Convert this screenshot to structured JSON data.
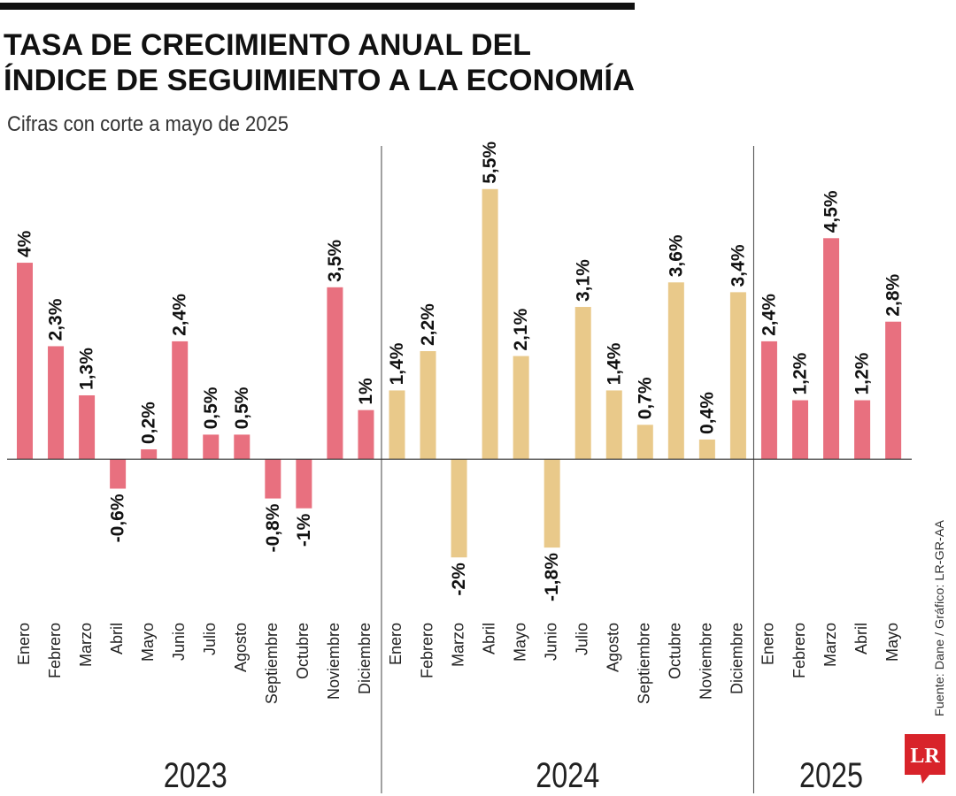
{
  "chart_data": {
    "type": "bar",
    "title": [
      "TASA DE CRECIMIENTO ANUAL DEL",
      "ÍNDICE DE SEGUIMIENTO A LA ECONOMÍA"
    ],
    "subtitle": "Cifras con corte a mayo de 2025",
    "source": "Fuente: Dane / Gráfico: LR-GR-AA",
    "logo": "LR",
    "ylim": [
      -2.5,
      6
    ],
    "groups": [
      {
        "name": "2023",
        "color": "#e8707f",
        "categories": [
          "Enero",
          "Febrero",
          "Marzo",
          "Abril",
          "Mayo",
          "Junio",
          "Julio",
          "Agosto",
          "Septiembre",
          "Octubre",
          "Noviembre",
          "Diciembre"
        ],
        "values": [
          4,
          2.3,
          1.3,
          -0.6,
          0.2,
          2.4,
          0.5,
          0.5,
          -0.8,
          -1,
          3.5,
          1
        ],
        "value_labels": [
          "4%",
          "2,3%",
          "1,3%",
          "-0,6%",
          "0,2%",
          "2,4%",
          "0,5%",
          "0,5%",
          "-0,8%",
          "-1%",
          "3,5%",
          "1%"
        ]
      },
      {
        "name": "2024",
        "color": "#e9c98a",
        "categories": [
          "Enero",
          "Febrero",
          "Marzo",
          "Abril",
          "Mayo",
          "Junio",
          "Julio",
          "Agosto",
          "Septiembre",
          "Octubre",
          "Noviembre",
          "Diciembre"
        ],
        "values": [
          1.4,
          2.2,
          -2,
          5.5,
          2.1,
          -1.8,
          3.1,
          1.4,
          0.7,
          3.6,
          0.4,
          3.4
        ],
        "value_labels": [
          "1,4%",
          "2,2%",
          "-2%",
          "5,5%",
          "2,1%",
          "-1,8%",
          "3,1%",
          "1,4%",
          "0,7%",
          "3,6%",
          "0,4%",
          "3,4%"
        ]
      },
      {
        "name": "2025",
        "color": "#e8707f",
        "categories": [
          "Enero",
          "Febrero",
          "Marzo",
          "Abril",
          "Mayo"
        ],
        "values": [
          2.4,
          1.2,
          4.5,
          1.2,
          2.8
        ],
        "value_labels": [
          "2,4%",
          "1,2%",
          "4,5%",
          "1,2%",
          "2,8%"
        ]
      }
    ]
  }
}
